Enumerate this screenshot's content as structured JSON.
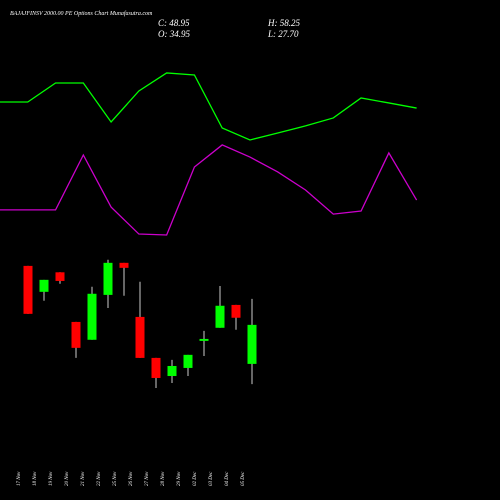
{
  "chart_data": [
    {
      "type": "line",
      "x": [
        0,
        1,
        2,
        3,
        4,
        5,
        6,
        7,
        8,
        9,
        10,
        11,
        12,
        13,
        14,
        15
      ],
      "xlim": [
        0,
        15.05
      ],
      "ylim": [
        0,
        100
      ],
      "series": [
        {
          "color": "#00ff00",
          "values": [
            77.9,
            77.9,
            87.9,
            87.9,
            67.4,
            83.7,
            93.2,
            92.1,
            64.2,
            57.9,
            61.6,
            65.3,
            69.5,
            80.0,
            77.4,
            74.7
          ]
        },
        {
          "color": "#cc00cc",
          "values": [
            21.1,
            21.1,
            21.1,
            50.0,
            22.6,
            8.4,
            7.9,
            43.7,
            55.3,
            48.9,
            41.1,
            31.6,
            18.9,
            20.5,
            51.1,
            26.3
          ]
        }
      ]
    },
    {
      "type": "candlestick",
      "title": "BAJAJFINSV 2000.00  PE Options  Chart Munafasutra.com",
      "ohlc_labels": [
        "C: 48.95",
        "H: 58.25",
        "O: 34.95",
        "L: 27.70"
      ],
      "categories": [
        "17 Nov",
        "18 Nov",
        "19 Nov",
        "20 Nov",
        "21 Nov",
        "22 Nov",
        "25 Nov",
        "26 Nov",
        "27 Nov",
        "28 Nov",
        "29 Nov",
        "02 Dec",
        "03 Dec",
        "04 Dec",
        "05 Dec"
      ],
      "open": [
        70.1,
        60.8,
        67.8,
        50.0,
        43.6,
        59.7,
        71.2,
        51.8,
        37.1,
        30.6,
        33.5,
        43.2,
        47.9,
        56.1,
        34.95
      ],
      "high": [
        70.1,
        65.1,
        67.8,
        50.0,
        62.6,
        72.3,
        71.2,
        64.4,
        37.1,
        36.4,
        38.2,
        46.8,
        62.9,
        56.1,
        58.25
      ],
      "low": [
        52.9,
        57.6,
        63.7,
        37.1,
        43.6,
        55.0,
        59.4,
        37.1,
        26.3,
        28.1,
        30.6,
        37.8,
        47.9,
        47.2,
        27.7
      ],
      "close": [
        52.9,
        65.1,
        64.7,
        40.7,
        60.1,
        71.2,
        69.4,
        37.1,
        29.9,
        34.2,
        38.2,
        43.9,
        55.8,
        51.5,
        48.95
      ],
      "ylim": [
        22.0,
        75.8
      ],
      "up_color": "#00ff00",
      "down_color": "#ff0000"
    }
  ]
}
